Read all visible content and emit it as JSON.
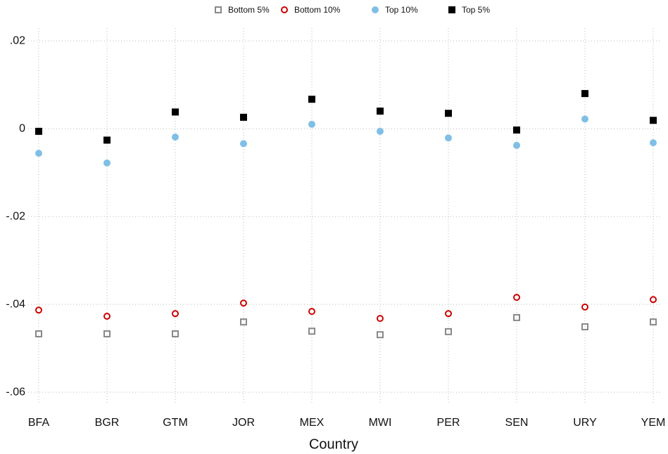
{
  "chart_data": {
    "type": "scatter",
    "x_label": "Country",
    "categories": [
      "BFA",
      "BGR",
      "GTM",
      "JOR",
      "MEX",
      "MWI",
      "PER",
      "SEN",
      "URY",
      "YEM"
    ],
    "series": [
      {
        "name": "Bottom 5%",
        "color": "#888888",
        "marker": "square-open",
        "values": [
          -0.0467,
          -0.0467,
          -0.0467,
          -0.044,
          -0.0461,
          -0.0469,
          -0.0462,
          -0.043,
          -0.0451,
          -0.044
        ]
      },
      {
        "name": "Bottom 10%",
        "color": "#cc0000",
        "marker": "circle-open",
        "values": [
          -0.0413,
          -0.0427,
          -0.0421,
          -0.0397,
          -0.0416,
          -0.0432,
          -0.0421,
          -0.0384,
          -0.0406,
          -0.0389
        ]
      },
      {
        "name": "Top 10%",
        "color": "#7fbfe6",
        "marker": "circle",
        "values": [
          -0.0056,
          -0.0078,
          -0.0019,
          -0.0034,
          0.001,
          -0.0006,
          -0.0021,
          -0.0038,
          0.0022,
          -0.0032
        ]
      },
      {
        "name": "Top 5%",
        "color": "#000000",
        "marker": "square",
        "values": [
          -0.0006,
          -0.0026,
          0.0038,
          0.0026,
          0.0067,
          0.004,
          0.0035,
          -0.0003,
          0.008,
          0.0019
        ]
      }
    ],
    "ylim": [
      -0.0627,
      0.0229
    ],
    "yticks": [
      {
        "value": -0.06,
        "label": "-.06"
      },
      {
        "value": -0.04,
        "label": "-.04"
      },
      {
        "value": -0.02,
        "label": "-.02"
      },
      {
        "value": 0,
        "label": "0"
      },
      {
        "value": 0.02,
        "label": ".02"
      }
    ],
    "grid": true,
    "legend": "top"
  }
}
